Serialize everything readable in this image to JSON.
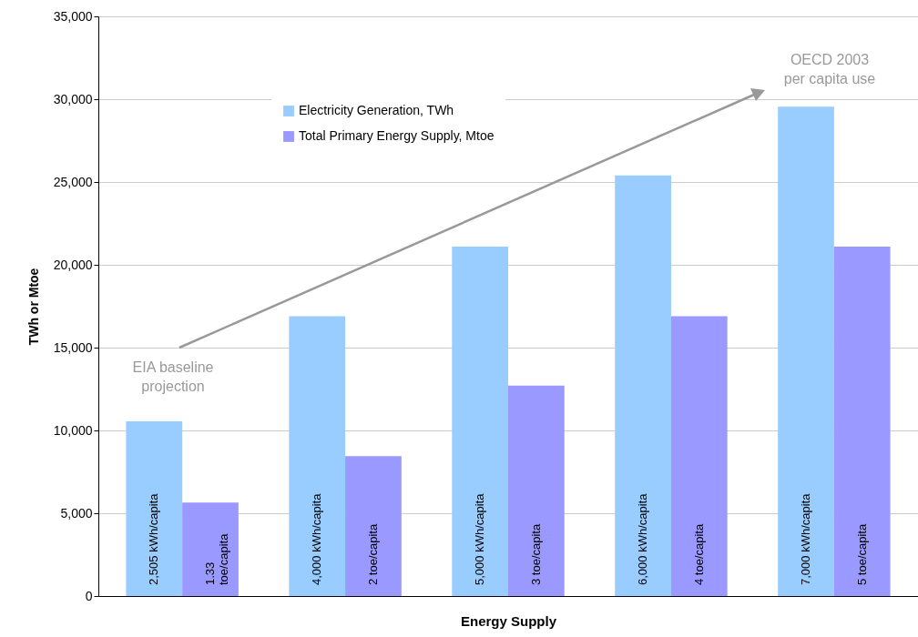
{
  "chart_data": {
    "type": "bar",
    "xlabel": "Energy Supply",
    "ylabel": "TWh or Mtoe",
    "categories": [
      null,
      null,
      null,
      null,
      null
    ],
    "series": [
      {
        "name": "Electricity Generation, TWh",
        "color": "#99ccff",
        "values": [
          10550,
          16900,
          21100,
          25400,
          29550
        ]
      },
      {
        "name": "Total Primary Energy Supply, Mtoe",
        "color": "#9999ff",
        "values": [
          5650,
          8450,
          12700,
          16900,
          21100
        ]
      }
    ],
    "ylim": [
      0,
      35000
    ],
    "yticks": [
      0,
      {
        "value": 5000,
        "label": "5,000"
      },
      {
        "value": 10000,
        "label": "10,000"
      },
      {
        "value": 15000,
        "label": "15,000"
      },
      {
        "value": 20000,
        "label": "20,000"
      },
      {
        "value": 25000,
        "label": "25,000"
      },
      {
        "value": 30000,
        "label": "30,000"
      },
      {
        "value": 35000,
        "label": "35,000"
      }
    ],
    "grid": "y",
    "legend": "top",
    "tick_labels": "y",
    "annotations": [
      "EIA baseline\nprojection",
      "OECD 2003\nper capita use",
      "2,505 kWh/capita",
      "4,000 kWh/capita",
      "5,000 kWh/capita",
      "6,000 kWh/capita",
      "7,000 kWh/capita",
      "1.33\ntoe/capita",
      "2 toe/capita",
      "3 toe/capita",
      "4 toe/capita",
      "5 toe/capita"
    ]
  }
}
